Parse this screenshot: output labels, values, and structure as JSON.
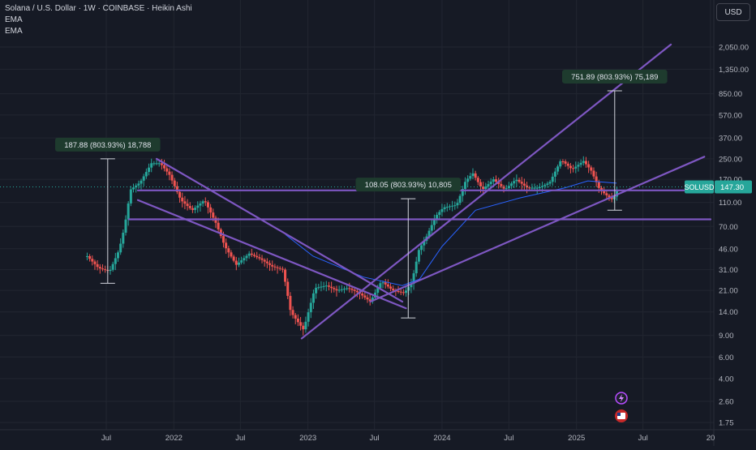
{
  "legend": {
    "title": "Solana / U.S. Dollar · 1W · COINBASE · Heikin Ashi",
    "ema1": "EMA",
    "ema2": "EMA"
  },
  "currency_button": "USD",
  "colors": {
    "background": "#161a25",
    "grid": "#222631",
    "up": "#26a69a",
    "down": "#ef5350",
    "trendline": "#7e57c2",
    "ema": "#2962ff",
    "axis_text": "#b2b5be",
    "price_label_bg": "#26a69a"
  },
  "chart_data": {
    "type": "candlestick",
    "symbol": "SOLUSD",
    "exchange": "COINBASE",
    "timeframe": "1W",
    "style": "Heikin Ashi",
    "scale": "log",
    "y_axis_ticks": [
      2050,
      1350,
      850,
      570,
      370,
      250,
      170,
      110,
      70,
      46,
      31,
      21,
      14,
      9,
      6,
      4,
      2.6,
      1.75
    ],
    "y_tick_labels": [
      "2,050.00",
      "1,350.00",
      "850.00",
      "570.00",
      "370.00",
      "250.00",
      "170.00",
      "110.00",
      "70.00",
      "46.00",
      "31.00",
      "21.00",
      "14.00",
      "9.00",
      "6.00",
      "4.00",
      "2.60",
      "1.75"
    ],
    "x_axis_ticks": [
      {
        "label": "Jul",
        "date": "2021-07-01"
      },
      {
        "label": "2022",
        "date": "2022-01-01"
      },
      {
        "label": "Jul",
        "date": "2022-07-01"
      },
      {
        "label": "2023",
        "date": "2023-01-01"
      },
      {
        "label": "Jul",
        "date": "2023-07-01"
      },
      {
        "label": "2024",
        "date": "2024-01-01"
      },
      {
        "label": "Jul",
        "date": "2024-07-01"
      },
      {
        "label": "2025",
        "date": "2025-01-01"
      },
      {
        "label": "Jul",
        "date": "2025-07-01"
      },
      {
        "label": "20",
        "date": "2026-01-01"
      }
    ],
    "x_range": [
      "2021-04-01",
      "2026-01-01"
    ],
    "last_price": 147.3,
    "last_price_label": "147.30",
    "symbol_label": "SOLUSD",
    "price_path": [
      [
        "2021-05-10",
        40
      ],
      [
        "2021-06-10",
        32
      ],
      [
        "2021-07-10",
        30
      ],
      [
        "2021-08-05",
        45
      ],
      [
        "2021-08-20",
        70
      ],
      [
        "2021-09-05",
        140
      ],
      [
        "2021-10-01",
        160
      ],
      [
        "2021-11-01",
        230
      ],
      [
        "2021-11-25",
        230
      ],
      [
        "2021-12-20",
        185
      ],
      [
        "2022-01-20",
        115
      ],
      [
        "2022-02-20",
        95
      ],
      [
        "2022-03-25",
        115
      ],
      [
        "2022-04-25",
        75
      ],
      [
        "2022-05-20",
        48
      ],
      [
        "2022-06-20",
        34
      ],
      [
        "2022-07-25",
        42
      ],
      [
        "2022-08-25",
        38
      ],
      [
        "2022-09-25",
        33
      ],
      [
        "2022-10-25",
        31
      ],
      [
        "2022-11-15",
        14
      ],
      [
        "2022-12-20",
        10
      ],
      [
        "2023-01-20",
        22
      ],
      [
        "2023-02-20",
        23
      ],
      [
        "2023-03-20",
        21
      ],
      [
        "2023-04-20",
        22
      ],
      [
        "2023-05-20",
        20
      ],
      [
        "2023-06-20",
        17
      ],
      [
        "2023-07-20",
        25
      ],
      [
        "2023-08-20",
        21
      ],
      [
        "2023-09-20",
        20
      ],
      [
        "2023-10-10",
        24
      ],
      [
        "2023-10-30",
        45
      ],
      [
        "2023-11-20",
        58
      ],
      [
        "2023-12-15",
        85
      ],
      [
        "2024-01-05",
        100
      ],
      [
        "2024-02-10",
        105
      ],
      [
        "2024-03-05",
        165
      ],
      [
        "2024-03-25",
        190
      ],
      [
        "2024-04-20",
        140
      ],
      [
        "2024-05-20",
        170
      ],
      [
        "2024-06-20",
        140
      ],
      [
        "2024-07-20",
        170
      ],
      [
        "2024-08-20",
        145
      ],
      [
        "2024-09-20",
        145
      ],
      [
        "2024-10-20",
        160
      ],
      [
        "2024-11-20",
        245
      ],
      [
        "2024-12-20",
        205
      ],
      [
        "2025-01-20",
        240
      ],
      [
        "2025-02-10",
        200
      ],
      [
        "2025-03-05",
        140
      ],
      [
        "2025-03-25",
        125
      ],
      [
        "2025-04-10",
        115
      ],
      [
        "2025-04-25",
        147.3
      ]
    ],
    "ema_path": [
      [
        "2022-11-01",
        60
      ],
      [
        "2023-01-15",
        40
      ],
      [
        "2023-06-01",
        27
      ],
      [
        "2023-09-15",
        23
      ],
      [
        "2023-11-01",
        26
      ],
      [
        "2024-01-01",
        48
      ],
      [
        "2024-04-01",
        95
      ],
      [
        "2024-08-01",
        120
      ],
      [
        "2024-12-01",
        145
      ],
      [
        "2025-02-01",
        165
      ],
      [
        "2025-04-20",
        158
      ]
    ],
    "trendlines": [
      {
        "from": [
          "2021-11-15",
          250
        ],
        "to": [
          "2023-09-15",
          17
        ]
      },
      {
        "from": [
          "2021-09-25",
          115
        ],
        "to": [
          "2023-09-25",
          15
        ]
      },
      {
        "from": [
          "2022-12-15",
          8.5
        ],
        "to": [
          "2025-09-15",
          2150
        ]
      },
      {
        "from": [
          "2023-06-20",
          17
        ],
        "to": [
          "2025-12-15",
          260
        ]
      },
      {
        "from": [
          "2021-09-25",
          138
        ],
        "to": [
          "2026-01-01",
          138
        ]
      },
      {
        "from": [
          "2021-09-01",
          80
        ],
        "to": [
          "2026-01-01",
          80
        ]
      }
    ],
    "measurements": [
      {
        "from": [
          "2021-07-05",
          24
        ],
        "to": [
          "2021-07-05",
          250
        ],
        "label": "187.88 (803.93%) 18,788"
      },
      {
        "from": [
          "2023-10-01",
          12.5
        ],
        "to": [
          "2023-10-01",
          118
        ],
        "label": "108.05 (803.93%) 10,805"
      },
      {
        "from": [
          "2025-04-15",
          95
        ],
        "to": [
          "2025-04-15",
          900
        ],
        "label": "751.89 (803.93%) 75,189"
      }
    ]
  }
}
